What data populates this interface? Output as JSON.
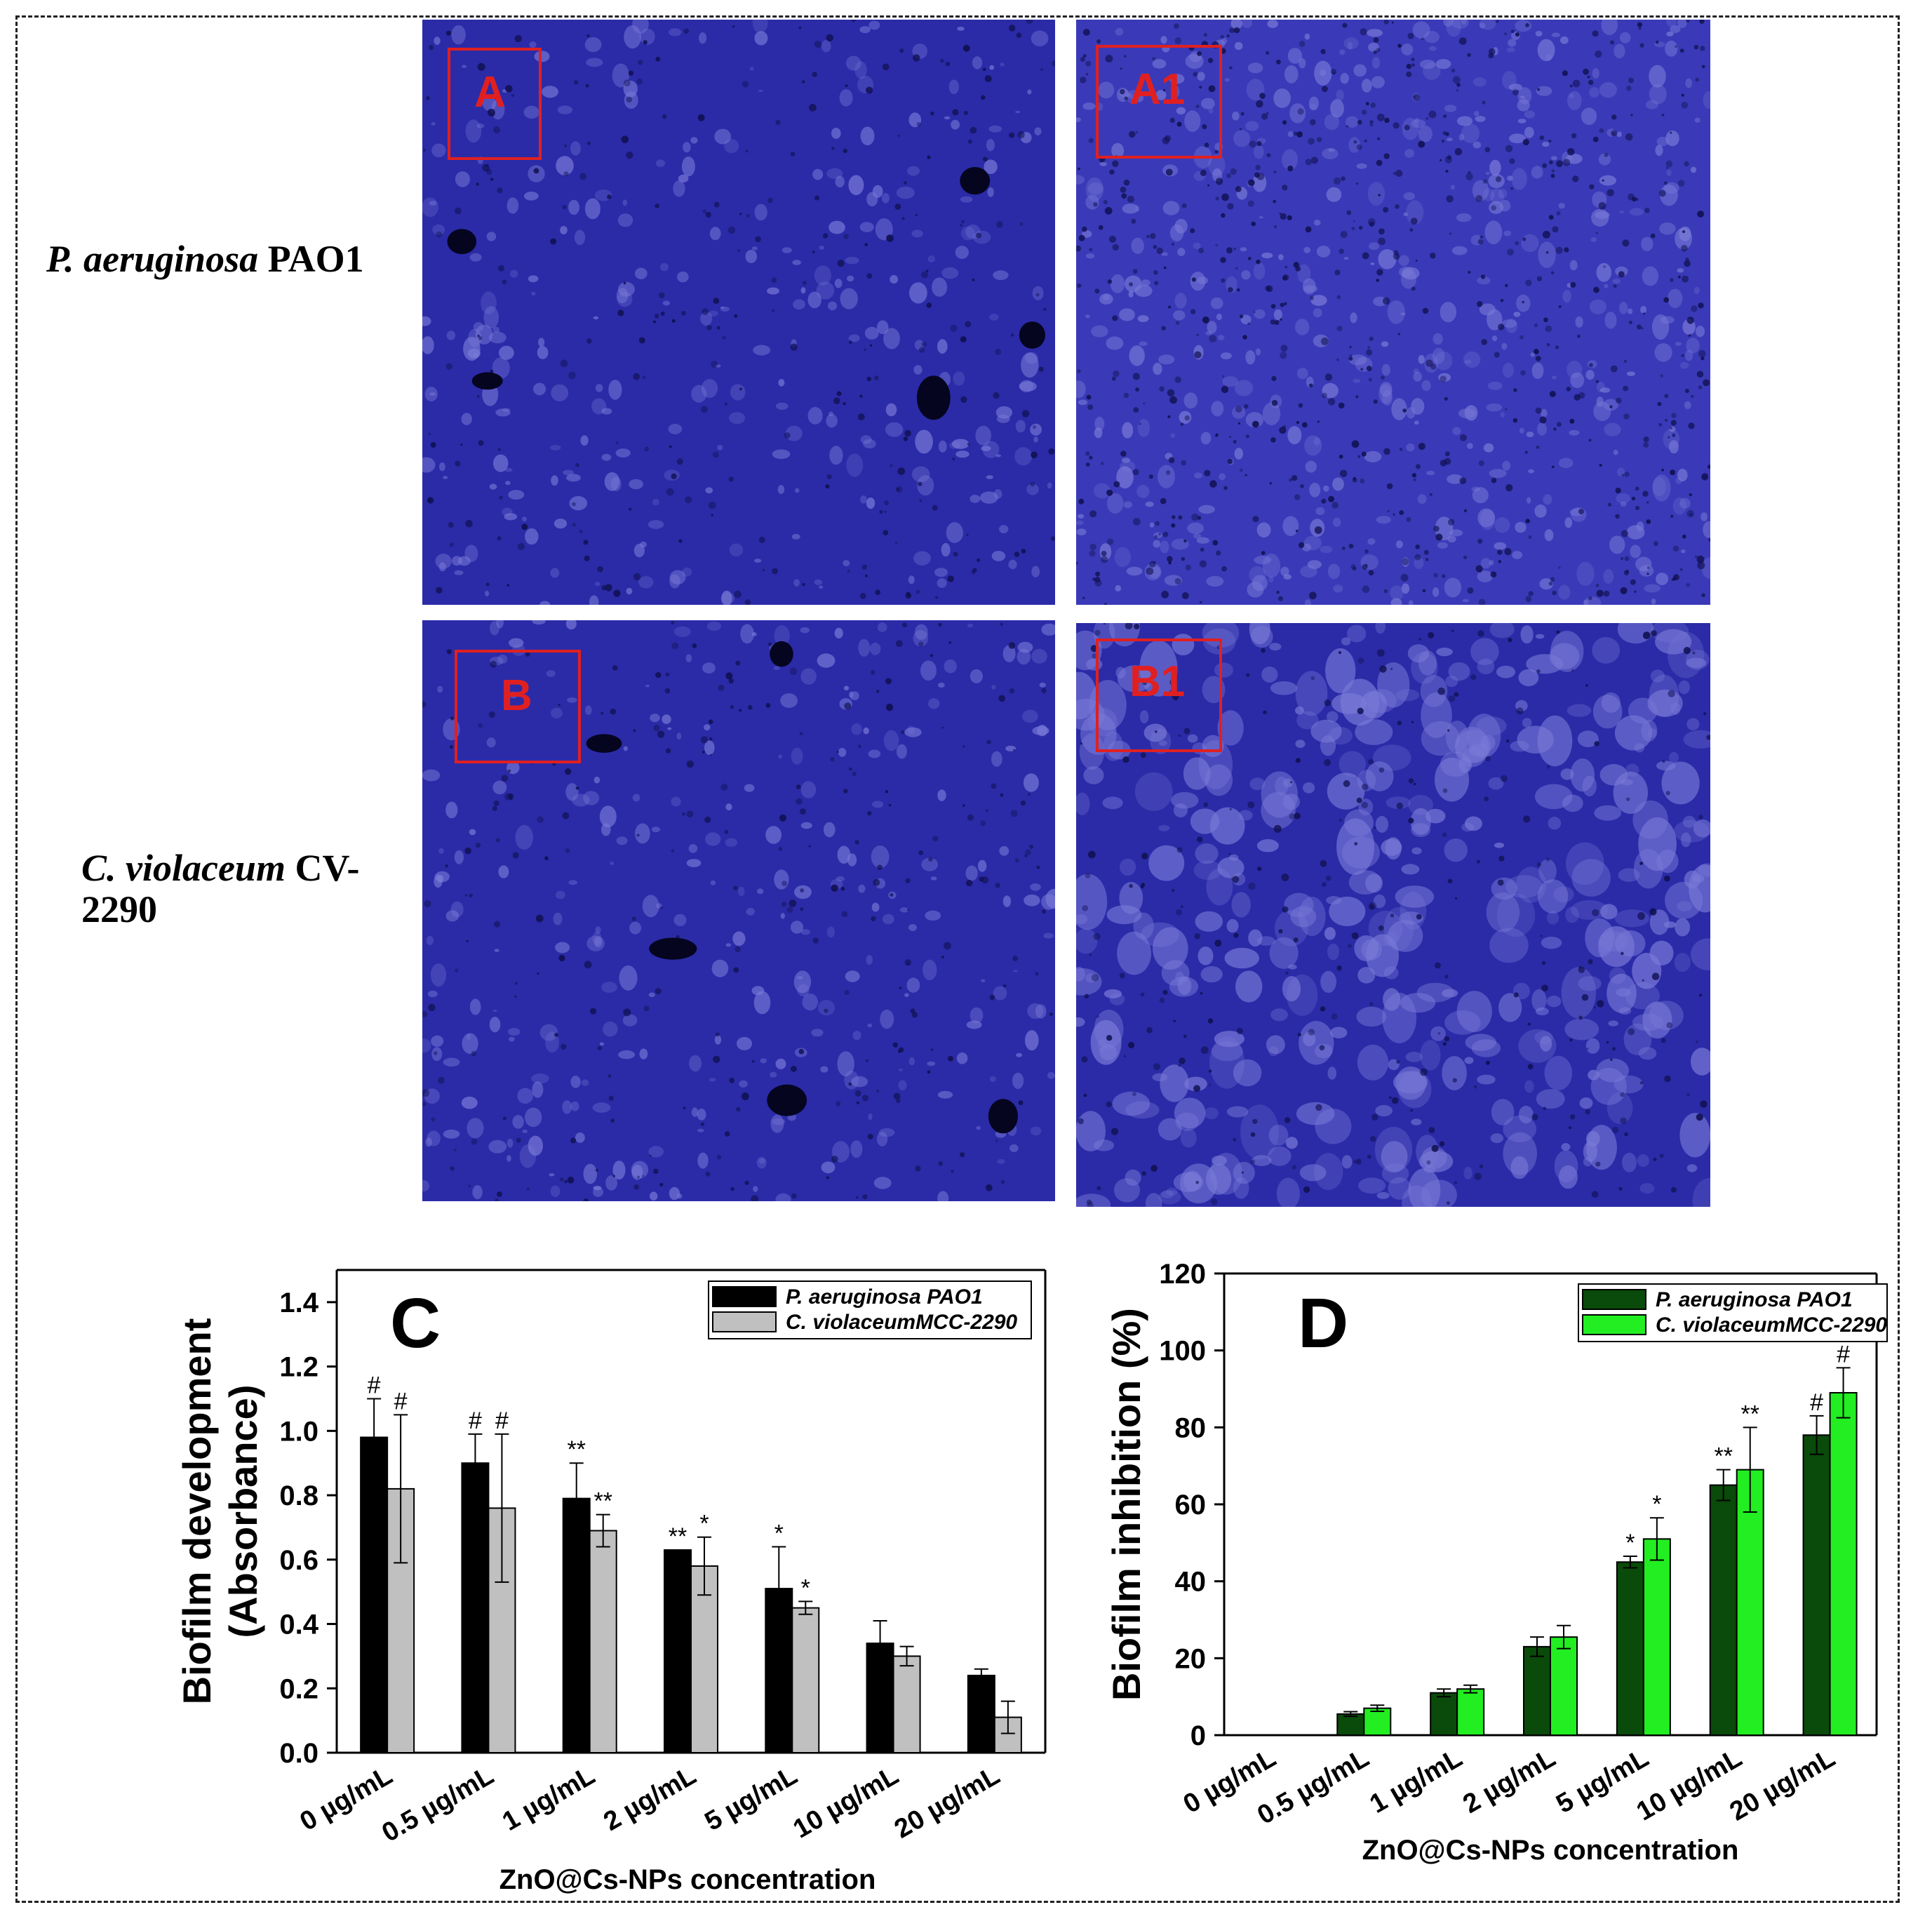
{
  "rows": [
    {
      "organism": "P. aeruginosa",
      "strain": "PAO1"
    },
    {
      "organism": "C. violaceum",
      "strain_line1": "CV-",
      "strain_line2": "2290"
    }
  ],
  "micrographs": [
    {
      "label": "A",
      "tone": "dense"
    },
    {
      "label": "A1",
      "tone": "sparse"
    },
    {
      "label": "B",
      "tone": "dense"
    },
    {
      "label": "B1",
      "tone": "patchy"
    }
  ],
  "colors": {
    "frame": "#222222",
    "stain": "#2b2ba8",
    "panel_box": "#e02020",
    "c_series1": "#000000",
    "c_series2": "#c0c0c0",
    "d_series1": "#0a4a0a",
    "d_series2": "#22ee22"
  },
  "chart_data": [
    {
      "type": "bar",
      "panel_letter": "C",
      "categories": [
        "0 µg/mL",
        "0.5 µg/mL",
        "1 µg/mL",
        "2 µg/mL",
        "5 µg/mL",
        "10 µg/mL",
        "20 µg/mL"
      ],
      "series": [
        {
          "name": "P. aeruginosa PAO1",
          "values": [
            0.98,
            0.9,
            0.79,
            0.63,
            0.51,
            0.34,
            0.24
          ],
          "errors": [
            0.12,
            0.09,
            0.11,
            0.0,
            0.13,
            0.07,
            0.02
          ],
          "annotations": [
            "#",
            "#",
            "**",
            "**",
            "*",
            "",
            ""
          ]
        },
        {
          "name": "C. violaceumMCC-2290",
          "values": [
            0.82,
            0.76,
            0.69,
            0.58,
            0.45,
            0.3,
            0.11
          ],
          "errors": [
            0.23,
            0.23,
            0.05,
            0.09,
            0.02,
            0.03,
            0.05
          ],
          "annotations": [
            "#",
            "#",
            "**",
            "*",
            "*",
            "",
            ""
          ]
        }
      ],
      "ylabel_line1": "Biofilm development",
      "ylabel_line2": "(Absorbance)",
      "xlabel": "ZnO@Cs-NPs  concentration",
      "ylim": [
        0,
        1.5
      ],
      "yticks": [
        "0.0",
        "0.2",
        "0.4",
        "0.6",
        "0.8",
        "1.0",
        "1.2",
        "1.4"
      ],
      "legend": "top-right",
      "grid": false
    },
    {
      "type": "bar",
      "panel_letter": "D",
      "categories": [
        "0 µg/mL",
        "0.5 µg/mL",
        "1 µg/mL",
        "2 µg/mL",
        "5 µg/mL",
        "10 µg/mL",
        "20 µg/mL"
      ],
      "series": [
        {
          "name": "P. aeruginosa PAO1",
          "values": [
            0,
            5.5,
            11,
            23,
            45,
            65,
            78
          ],
          "errors": [
            0,
            0.6,
            1,
            2.5,
            1.5,
            4,
            5
          ],
          "annotations": [
            "",
            "",
            "",
            "",
            "*",
            "**",
            "#"
          ]
        },
        {
          "name": "C. violaceumMCC-2290",
          "values": [
            0,
            7,
            12,
            25.5,
            51,
            69,
            89
          ],
          "errors": [
            0,
            0.8,
            1,
            3,
            5.5,
            11,
            6.5
          ],
          "annotations": [
            "",
            "",
            "",
            "",
            "*",
            "**",
            "#"
          ]
        }
      ],
      "ylabel": "Biofilm inhibition (%)",
      "xlabel": "ZnO@Cs-NPs  concentration",
      "ylim": [
        0,
        120
      ],
      "yticks": [
        "0",
        "20",
        "40",
        "60",
        "80",
        "100",
        "120"
      ],
      "legend": "top-right",
      "grid": false
    }
  ]
}
